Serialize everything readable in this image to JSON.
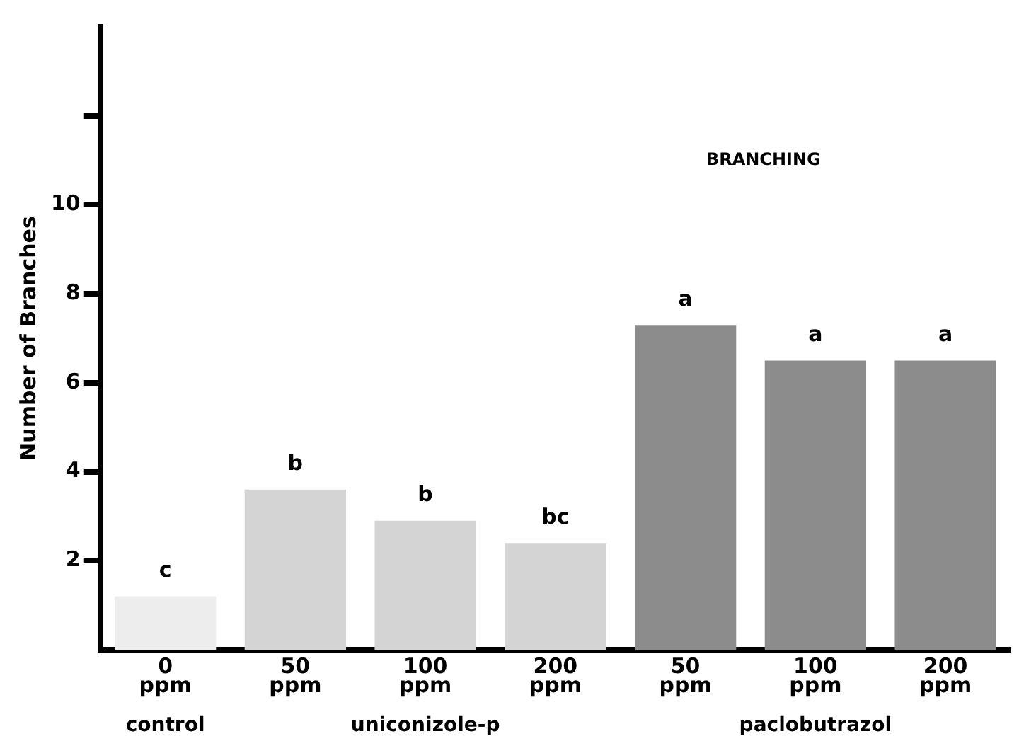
{
  "chart_data": {
    "type": "bar",
    "title": "BRANCHING",
    "ylabel": "Number of Branches",
    "categories": [
      "0\nppm",
      "50\nppm",
      "100\nppm",
      "200\nppm",
      "50\nppm",
      "100\nppm",
      "200\nppm"
    ],
    "values": [
      1.2,
      3.6,
      2.9,
      2.4,
      7.3,
      6.5,
      6.5
    ],
    "colors": [
      "#ededed",
      "#d4d4d4",
      "#d4d4d4",
      "#d4d4d4",
      "#8c8c8c",
      "#8c8c8c",
      "#8c8c8c"
    ],
    "value_labels": [
      "c",
      "b",
      "b",
      "bc",
      "a",
      "a",
      "a"
    ],
    "annotations": [
      "control",
      "uniconizole-p",
      "paclobutrazol"
    ],
    "ylim": [
      0,
      14
    ],
    "yticks": [
      2,
      4,
      6,
      8,
      10,
      {
        "value": 12,
        "label": null
      }
    ],
    "grid": false,
    "legend": false
  }
}
